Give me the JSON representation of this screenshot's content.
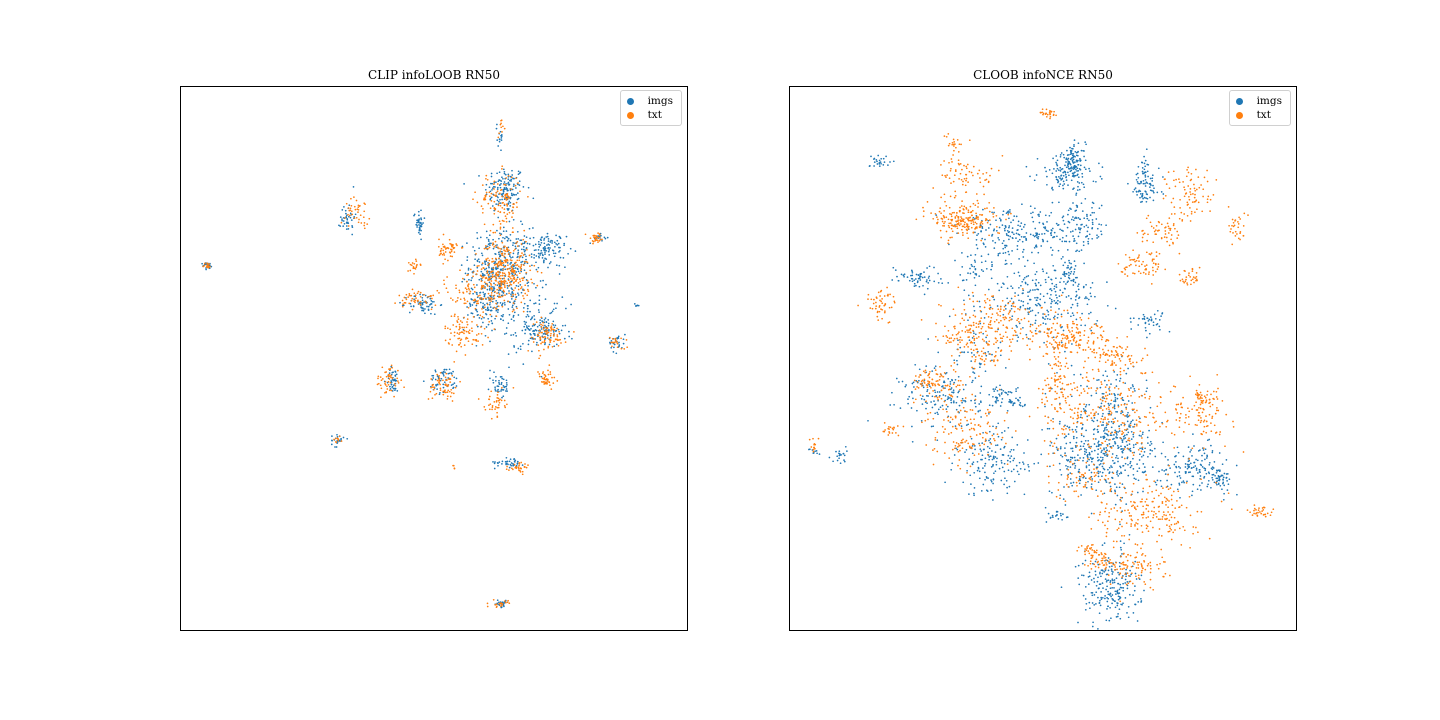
{
  "colors": {
    "imgs": "#1f77b4",
    "txt": "#ff7f0e"
  },
  "chart_data": [
    {
      "type": "scatter",
      "title": "CLIP  infoLOOB RN50",
      "xlabel": "",
      "ylabel": "",
      "xlim": [
        0,
        100
      ],
      "ylim": [
        0,
        100
      ],
      "grid": false,
      "legend_position": "top-right",
      "series": [
        {
          "name": "imgs",
          "color": "#1f77b4",
          "clusters": [
            {
              "x": 64,
              "y": 81,
              "sx": 2.0,
              "sy": 2.2,
              "n": 140
            },
            {
              "x": 63,
              "y": 67,
              "sx": 3.0,
              "sy": 3.5,
              "n": 320
            },
            {
              "x": 61,
              "y": 60,
              "sx": 2.5,
              "sy": 2.5,
              "n": 140
            },
            {
              "x": 72,
              "y": 70,
              "sx": 2.0,
              "sy": 1.5,
              "n": 110
            },
            {
              "x": 71,
              "y": 55,
              "sx": 2.5,
              "sy": 1.5,
              "n": 120
            },
            {
              "x": 47,
              "y": 75,
              "sx": 0.5,
              "sy": 1.2,
              "n": 40
            },
            {
              "x": 33,
              "y": 76,
              "sx": 0.7,
              "sy": 1.6,
              "n": 40
            },
            {
              "x": 5.5,
              "y": 67,
              "sx": 0.5,
              "sy": 0.3,
              "n": 25
            },
            {
              "x": 48,
              "y": 60,
              "sx": 1.5,
              "sy": 1.0,
              "n": 60
            },
            {
              "x": 63,
              "y": 45,
              "sx": 1.0,
              "sy": 1.2,
              "n": 40
            },
            {
              "x": 42,
              "y": 46,
              "sx": 0.7,
              "sy": 1.2,
              "n": 40
            },
            {
              "x": 52,
              "y": 46,
              "sx": 1.5,
              "sy": 1.2,
              "n": 60
            },
            {
              "x": 65,
              "y": 31,
              "sx": 1.5,
              "sy": 0.5,
              "n": 40
            },
            {
              "x": 63,
              "y": 5,
              "sx": 0.8,
              "sy": 0.3,
              "n": 25
            },
            {
              "x": 86,
              "y": 53,
              "sx": 0.8,
              "sy": 0.9,
              "n": 30
            },
            {
              "x": 31,
              "y": 35,
              "sx": 0.6,
              "sy": 0.6,
              "n": 20
            },
            {
              "x": 63,
              "y": 91,
              "sx": 0.3,
              "sy": 1.2,
              "n": 15
            },
            {
              "x": 83,
              "y": 72,
              "sx": 0.7,
              "sy": 0.4,
              "n": 15
            },
            {
              "x": 90,
              "y": 60,
              "sx": 0.3,
              "sy": 0.3,
              "n": 6
            },
            {
              "x": 68,
              "y": 60,
              "sx": 4.0,
              "sy": 5.0,
              "n": 80
            }
          ]
        },
        {
          "name": "txt",
          "color": "#ff7f0e",
          "clusters": [
            {
              "x": 63,
              "y": 79,
              "sx": 2.2,
              "sy": 2.5,
              "n": 110
            },
            {
              "x": 64,
              "y": 66,
              "sx": 2.5,
              "sy": 3.0,
              "n": 300
            },
            {
              "x": 58,
              "y": 62,
              "sx": 3.0,
              "sy": 2.5,
              "n": 100
            },
            {
              "x": 53,
              "y": 70,
              "sx": 1.0,
              "sy": 1.0,
              "n": 50
            },
            {
              "x": 47,
              "y": 61,
              "sx": 2.0,
              "sy": 1.0,
              "n": 50
            },
            {
              "x": 56,
              "y": 55,
              "sx": 2.0,
              "sy": 1.5,
              "n": 80
            },
            {
              "x": 72,
              "y": 54,
              "sx": 2.0,
              "sy": 1.5,
              "n": 80
            },
            {
              "x": 35,
              "y": 77,
              "sx": 1.2,
              "sy": 1.2,
              "n": 40
            },
            {
              "x": 5.5,
              "y": 67,
              "sx": 0.4,
              "sy": 0.3,
              "n": 15
            },
            {
              "x": 41,
              "y": 46,
              "sx": 1.2,
              "sy": 1.5,
              "n": 50
            },
            {
              "x": 52,
              "y": 45,
              "sx": 1.5,
              "sy": 1.5,
              "n": 60
            },
            {
              "x": 62,
              "y": 42,
              "sx": 1.0,
              "sy": 1.2,
              "n": 40
            },
            {
              "x": 72,
              "y": 46,
              "sx": 1.0,
              "sy": 1.0,
              "n": 40
            },
            {
              "x": 82,
              "y": 72,
              "sx": 1.0,
              "sy": 0.5,
              "n": 30
            },
            {
              "x": 86,
              "y": 53,
              "sx": 0.8,
              "sy": 0.7,
              "n": 20
            },
            {
              "x": 67,
              "y": 30,
              "sx": 1.2,
              "sy": 0.5,
              "n": 30
            },
            {
              "x": 63,
              "y": 5,
              "sx": 0.8,
              "sy": 0.3,
              "n": 20
            },
            {
              "x": 63,
              "y": 92,
              "sx": 0.3,
              "sy": 1.0,
              "n": 10
            },
            {
              "x": 46,
              "y": 67,
              "sx": 0.8,
              "sy": 0.6,
              "n": 20
            },
            {
              "x": 31,
              "y": 35,
              "sx": 0.5,
              "sy": 0.5,
              "n": 10
            },
            {
              "x": 54,
              "y": 30,
              "sx": 0.3,
              "sy": 0.3,
              "n": 4
            }
          ]
        }
      ]
    },
    {
      "type": "scatter",
      "title": "CLOOB  infoNCE RN50",
      "xlabel": "",
      "ylabel": "",
      "xlim": [
        0,
        100
      ],
      "ylim": [
        0,
        100
      ],
      "grid": false,
      "legend_position": "top-right",
      "series": [
        {
          "name": "imgs",
          "color": "#1f77b4",
          "clusters": [
            {
              "x": 55,
              "y": 84,
              "sx": 3.0,
              "sy": 1.5,
              "n": 120
            },
            {
              "x": 70,
              "y": 82,
              "sx": 1.5,
              "sy": 2.5,
              "n": 90
            },
            {
              "x": 56,
              "y": 87,
              "sx": 1.2,
              "sy": 1.2,
              "n": 60
            },
            {
              "x": 44,
              "y": 73,
              "sx": 5.0,
              "sy": 2.0,
              "n": 180
            },
            {
              "x": 57,
              "y": 74,
              "sx": 3.0,
              "sy": 2.5,
              "n": 120
            },
            {
              "x": 50,
              "y": 61,
              "sx": 5.5,
              "sy": 3.5,
              "n": 260
            },
            {
              "x": 71,
              "y": 57,
              "sx": 1.5,
              "sy": 1.0,
              "n": 40
            },
            {
              "x": 55,
              "y": 66,
              "sx": 1.0,
              "sy": 1.0,
              "n": 30
            },
            {
              "x": 25,
              "y": 65,
              "sx": 2.5,
              "sy": 1.0,
              "n": 60
            },
            {
              "x": 18,
              "y": 86,
              "sx": 1.0,
              "sy": 0.8,
              "n": 25
            },
            {
              "x": 56,
              "y": 86,
              "sx": 0.8,
              "sy": 0.8,
              "n": 15
            },
            {
              "x": 37,
              "y": 66,
              "sx": 2.0,
              "sy": 2.0,
              "n": 40
            },
            {
              "x": 30,
              "y": 43,
              "sx": 4.0,
              "sy": 3.0,
              "n": 150
            },
            {
              "x": 42,
              "y": 43,
              "sx": 1.5,
              "sy": 1.0,
              "n": 40
            },
            {
              "x": 40,
              "y": 31,
              "sx": 3.5,
              "sy": 3.0,
              "n": 150
            },
            {
              "x": 62,
              "y": 32,
              "sx": 6.0,
              "sy": 3.5,
              "n": 330
            },
            {
              "x": 80,
              "y": 30,
              "sx": 3.5,
              "sy": 2.0,
              "n": 140
            },
            {
              "x": 85,
              "y": 28,
              "sx": 1.0,
              "sy": 1.0,
              "n": 40
            },
            {
              "x": 65,
              "y": 40,
              "sx": 2.5,
              "sy": 4.0,
              "n": 120
            },
            {
              "x": 63,
              "y": 8,
              "sx": 3.0,
              "sy": 3.5,
              "n": 220
            },
            {
              "x": 10,
              "y": 32,
              "sx": 0.7,
              "sy": 0.7,
              "n": 20
            },
            {
              "x": 5,
              "y": 33,
              "sx": 0.6,
              "sy": 0.4,
              "n": 10
            },
            {
              "x": 53,
              "y": 21,
              "sx": 1.0,
              "sy": 0.8,
              "n": 20
            },
            {
              "x": 45,
              "y": 42,
              "sx": 0.8,
              "sy": 0.8,
              "n": 20
            },
            {
              "x": 37,
              "y": 52,
              "sx": 3.0,
              "sy": 5.0,
              "n": 60
            },
            {
              "x": 60,
              "y": 35,
              "sx": 4.0,
              "sy": 8.0,
              "n": 100
            }
          ]
        },
        {
          "name": "txt",
          "color": "#ff7f0e",
          "clusters": [
            {
              "x": 51,
              "y": 95,
              "sx": 0.8,
              "sy": 0.5,
              "n": 25
            },
            {
              "x": 35,
              "y": 76,
              "sx": 3.5,
              "sy": 2.0,
              "n": 120
            },
            {
              "x": 40,
              "y": 57,
              "sx": 5.0,
              "sy": 2.5,
              "n": 180
            },
            {
              "x": 56,
              "y": 54,
              "sx": 4.0,
              "sy": 1.5,
              "n": 120
            },
            {
              "x": 64,
              "y": 50,
              "sx": 3.5,
              "sy": 1.5,
              "n": 80
            },
            {
              "x": 53,
              "y": 47,
              "sx": 2.0,
              "sy": 6.0,
              "n": 130
            },
            {
              "x": 18,
              "y": 60,
              "sx": 1.5,
              "sy": 1.5,
              "n": 50
            },
            {
              "x": 34,
              "y": 75,
              "sx": 2.0,
              "sy": 1.0,
              "n": 30
            },
            {
              "x": 79,
              "y": 80,
              "sx": 2.5,
              "sy": 2.5,
              "n": 80
            },
            {
              "x": 73,
              "y": 73,
              "sx": 2.0,
              "sy": 2.0,
              "n": 60
            },
            {
              "x": 88,
              "y": 74,
              "sx": 1.0,
              "sy": 1.5,
              "n": 30
            },
            {
              "x": 79,
              "y": 65,
              "sx": 1.0,
              "sy": 1.0,
              "n": 30
            },
            {
              "x": 70,
              "y": 67,
              "sx": 2.5,
              "sy": 1.5,
              "n": 60
            },
            {
              "x": 35,
              "y": 84,
              "sx": 3.0,
              "sy": 1.5,
              "n": 60
            },
            {
              "x": 34,
              "y": 54,
              "sx": 2.5,
              "sy": 1.5,
              "n": 40
            },
            {
              "x": 38,
              "y": 51,
              "sx": 2.0,
              "sy": 1.5,
              "n": 40
            },
            {
              "x": 33,
              "y": 89,
              "sx": 1.0,
              "sy": 1.0,
              "n": 20
            },
            {
              "x": 34,
              "y": 75,
              "sx": 3.0,
              "sy": 1.5,
              "n": 60
            },
            {
              "x": 63,
              "y": 40,
              "sx": 6.0,
              "sy": 4.0,
              "n": 240
            },
            {
              "x": 80,
              "y": 40,
              "sx": 3.5,
              "sy": 2.5,
              "n": 100
            },
            {
              "x": 82,
              "y": 42,
              "sx": 1.0,
              "sy": 1.0,
              "n": 30
            },
            {
              "x": 35,
              "y": 36,
              "sx": 4.0,
              "sy": 3.0,
              "n": 130
            },
            {
              "x": 30,
              "y": 45,
              "sx": 3.0,
              "sy": 2.0,
              "n": 60
            },
            {
              "x": 71,
              "y": 22,
              "sx": 5.0,
              "sy": 3.0,
              "n": 200
            },
            {
              "x": 68,
              "y": 12,
              "sx": 3.0,
              "sy": 2.0,
              "n": 100
            },
            {
              "x": 93,
              "y": 22,
              "sx": 1.2,
              "sy": 0.6,
              "n": 30
            },
            {
              "x": 20,
              "y": 37,
              "sx": 1.0,
              "sy": 0.6,
              "n": 20
            },
            {
              "x": 5,
              "y": 34,
              "sx": 0.6,
              "sy": 0.5,
              "n": 12
            },
            {
              "x": 61,
              "y": 13,
              "sx": 1.5,
              "sy": 1.0,
              "n": 40
            },
            {
              "x": 59,
              "y": 15,
              "sx": 0.8,
              "sy": 0.6,
              "n": 20
            },
            {
              "x": 28,
              "y": 46,
              "sx": 1.5,
              "sy": 1.0,
              "n": 40
            },
            {
              "x": 58,
              "y": 28,
              "sx": 3.0,
              "sy": 2.0,
              "n": 60
            }
          ]
        }
      ]
    }
  ]
}
